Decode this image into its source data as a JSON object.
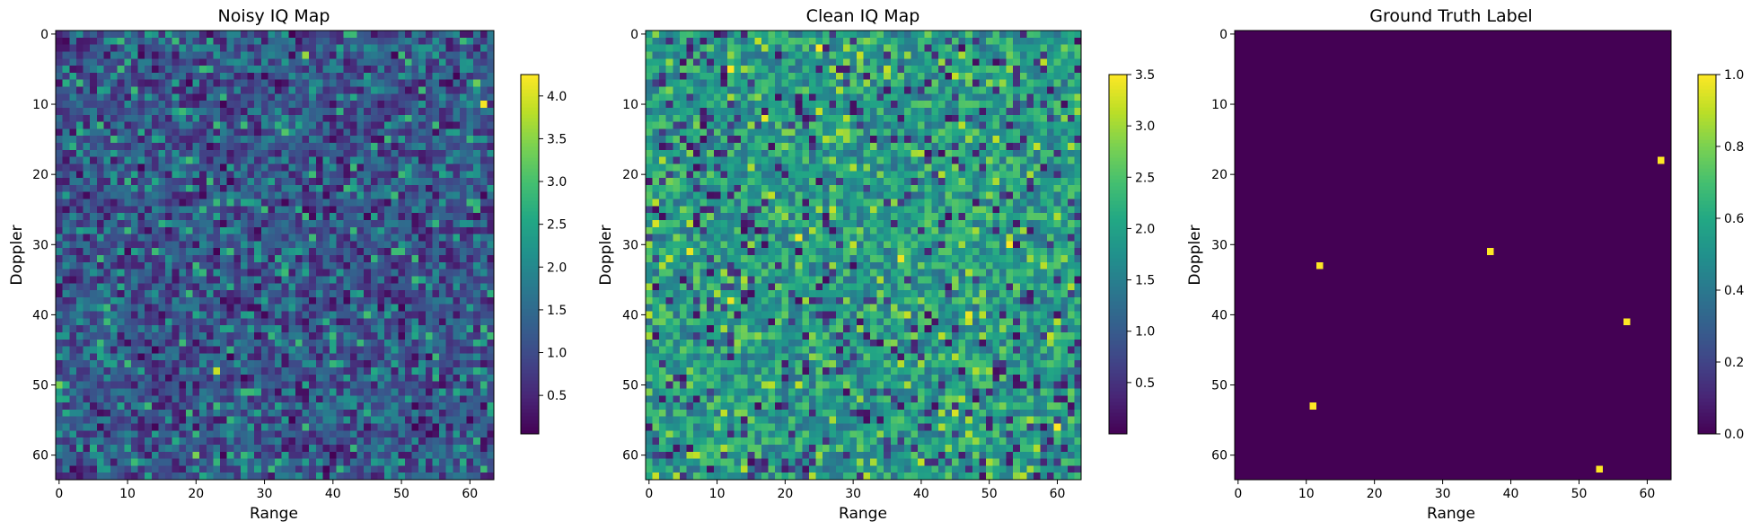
{
  "colormap": "viridis",
  "chart_data": [
    {
      "type": "heatmap",
      "title": "Noisy IQ Map",
      "xlabel": "Range",
      "ylabel": "Doppler",
      "grid_size": [
        64,
        64
      ],
      "x_ticks": [
        0,
        10,
        20,
        30,
        40,
        50,
        60
      ],
      "y_ticks": [
        0,
        10,
        20,
        30,
        40,
        50,
        60
      ],
      "value_range": [
        0.05,
        4.25
      ],
      "colorbar_ticks": [
        0.5,
        1.0,
        1.5,
        2.0,
        2.5,
        3.0,
        3.5,
        4.0
      ],
      "colorbar_tick_labels": [
        "0.5",
        "1.0",
        "1.5",
        "2.0",
        "2.5",
        "3.0",
        "3.5",
        "4.0"
      ],
      "distribution": "Rayleigh-like noise, mean about 1.25",
      "highlighted_cells": [
        {
          "x": 62,
          "y": 10,
          "value": 4.2
        },
        {
          "x": 36,
          "y": 3,
          "value": 3.6
        },
        {
          "x": 23,
          "y": 48,
          "value": 3.9
        },
        {
          "x": 20,
          "y": 60,
          "value": 3.4
        },
        {
          "x": 0,
          "y": 50,
          "value": 3.4
        },
        {
          "x": 61,
          "y": 7,
          "value": 3.3
        },
        {
          "x": 19,
          "y": 18,
          "value": 3.0
        },
        {
          "x": 33,
          "y": 14,
          "value": 3.1
        },
        {
          "x": 45,
          "y": 40,
          "value": 3.0
        }
      ]
    },
    {
      "type": "heatmap",
      "title": "Clean IQ Map",
      "xlabel": "Range",
      "ylabel": "Doppler",
      "grid_size": [
        64,
        64
      ],
      "x_ticks": [
        0,
        10,
        20,
        30,
        40,
        50,
        60
      ],
      "y_ticks": [
        0,
        10,
        20,
        30,
        40,
        50,
        60
      ],
      "value_range": [
        0.0,
        3.5
      ],
      "colorbar_ticks": [
        0.5,
        1.0,
        1.5,
        2.0,
        2.5,
        3.0,
        3.5
      ],
      "colorbar_tick_labels": [
        "0.5",
        "1.0",
        "1.5",
        "2.0",
        "2.5",
        "3.0",
        "3.5"
      ],
      "distribution": "random cell values 0 to 3.5, mostly 1.5 to 2.5",
      "highlighted_cells": [
        {
          "x": 12,
          "y": 5,
          "value": 3.5
        },
        {
          "x": 25,
          "y": 2,
          "value": 3.5
        },
        {
          "x": 17,
          "y": 12,
          "value": 3.4
        },
        {
          "x": 6,
          "y": 31,
          "value": 3.4
        },
        {
          "x": 22,
          "y": 29,
          "value": 3.4
        },
        {
          "x": 53,
          "y": 30,
          "value": 3.5
        },
        {
          "x": 37,
          "y": 32,
          "value": 3.4
        },
        {
          "x": 12,
          "y": 38,
          "value": 3.4
        },
        {
          "x": 47,
          "y": 40,
          "value": 3.4
        },
        {
          "x": 60,
          "y": 56,
          "value": 3.5
        },
        {
          "x": 1,
          "y": 27,
          "value": 3.3
        },
        {
          "x": 45,
          "y": 54,
          "value": 3.3
        }
      ]
    },
    {
      "type": "heatmap",
      "title": "Ground Truth Label",
      "xlabel": "Range",
      "ylabel": "Doppler",
      "grid_size": [
        64,
        64
      ],
      "x_ticks": [
        0,
        10,
        20,
        30,
        40,
        50,
        60
      ],
      "y_ticks": [
        0,
        10,
        20,
        30,
        40,
        50,
        60
      ],
      "value_range": [
        0.0,
        1.0
      ],
      "colorbar_ticks": [
        0.0,
        0.2,
        0.4,
        0.6,
        0.8,
        1.0
      ],
      "colorbar_tick_labels": [
        "0.0",
        "0.2",
        "0.4",
        "0.6",
        "0.8",
        "1.0"
      ],
      "background_value": 0,
      "target_value": 1,
      "targets": [
        {
          "x": 62,
          "y": 18
        },
        {
          "x": 12,
          "y": 33
        },
        {
          "x": 37,
          "y": 31
        },
        {
          "x": 57,
          "y": 41
        },
        {
          "x": 11,
          "y": 53
        },
        {
          "x": 53,
          "y": 62
        }
      ]
    }
  ]
}
